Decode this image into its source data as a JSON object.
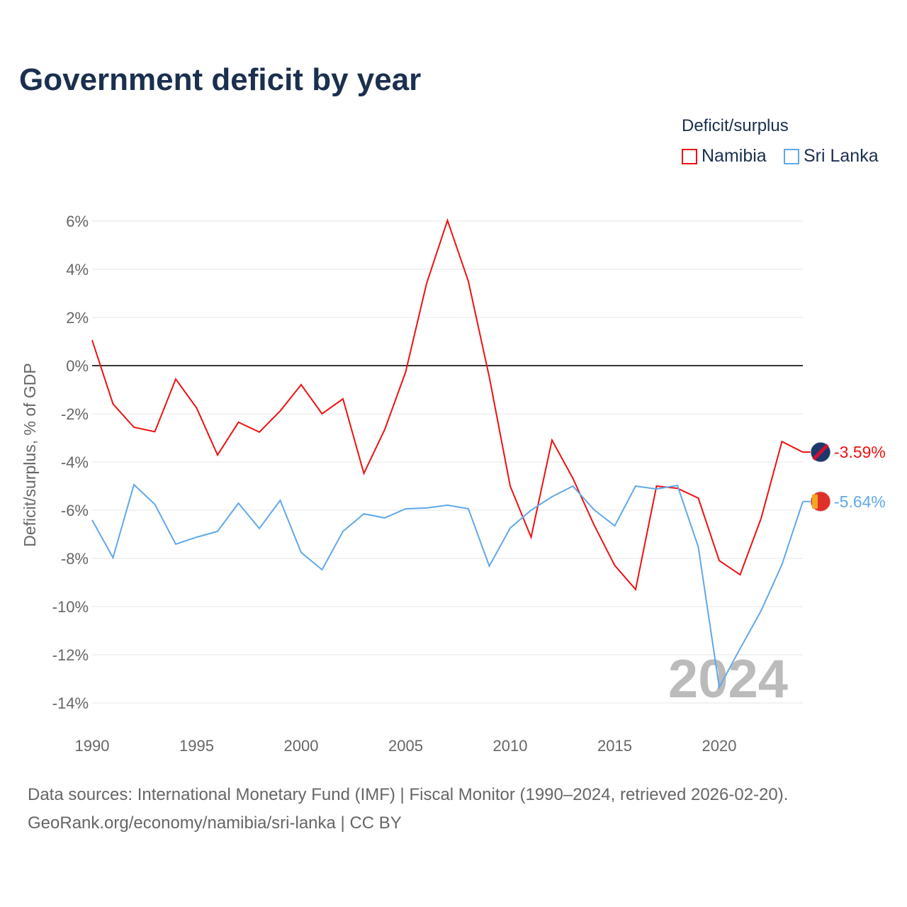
{
  "title": "Government deficit by year",
  "legend": {
    "title": "Deficit/surplus",
    "items": [
      {
        "name": "Namibia",
        "color": "#ee1111"
      },
      {
        "name": "Sri Lanka",
        "color": "#60a8ea"
      }
    ]
  },
  "footer": {
    "line1": "Data sources: International Monetary Fund (IMF) | Fiscal Monitor (1990–2024, retrieved 2026-02-20).",
    "line2": "GeoRank.org/economy/namibia/sri-lanka | CC BY"
  },
  "chart_data": {
    "type": "line",
    "title": "Government deficit by year",
    "xlabel": "",
    "ylabel": "Deficit/surplus, % of GDP",
    "xlim": [
      1990,
      2024
    ],
    "ylim": [
      -15,
      6.5
    ],
    "yticks": [
      6,
      4,
      2,
      0,
      -2,
      -4,
      -6,
      -8,
      -10,
      -12,
      -14
    ],
    "ytick_labels": [
      "6%",
      "4%",
      "2%",
      "0%",
      "-2%",
      "-4%",
      "-6%",
      "-8%",
      "-10%",
      "-12%",
      "-14%"
    ],
    "xticks": [
      1990,
      1995,
      2000,
      2005,
      2010,
      2015,
      2020
    ],
    "xtick_labels": [
      "1990",
      "1995",
      "2000",
      "2005",
      "2010",
      "2015",
      "2020"
    ],
    "year_watermark": "2024",
    "grid": true,
    "legend_position": "top-right",
    "x": [
      1990,
      1991,
      1992,
      1993,
      1994,
      1995,
      1996,
      1997,
      1998,
      1999,
      2000,
      2001,
      2002,
      2003,
      2004,
      2005,
      2006,
      2007,
      2008,
      2009,
      2010,
      2011,
      2012,
      2013,
      2014,
      2015,
      2016,
      2017,
      2018,
      2019,
      2020,
      2021,
      2022,
      2023,
      2024
    ],
    "series": [
      {
        "name": "Namibia",
        "color": "#ee1111",
        "end_label": "-3.59%",
        "values": [
          1.06,
          -1.59,
          -2.56,
          -2.74,
          -0.56,
          -1.76,
          -3.71,
          -2.35,
          -2.76,
          -1.88,
          -0.79,
          -2.0,
          -1.38,
          -4.47,
          -2.65,
          -0.26,
          3.41,
          6.03,
          3.5,
          -0.47,
          -5.0,
          -7.12,
          -3.09,
          -4.68,
          -6.59,
          -8.29,
          -9.29,
          -5.0,
          -5.09,
          -5.5,
          -8.09,
          -8.68,
          -6.35,
          -3.15,
          -3.59
        ]
      },
      {
        "name": "Sri Lanka",
        "color": "#60a8ea",
        "end_label": "-5.64%",
        "values": [
          -6.41,
          -7.97,
          -4.94,
          -5.76,
          -7.41,
          -7.12,
          -6.88,
          -5.71,
          -6.76,
          -5.59,
          -7.76,
          -8.47,
          -6.88,
          -6.15,
          -6.32,
          -5.94,
          -5.91,
          -5.79,
          -5.94,
          -8.32,
          -6.74,
          -6.0,
          -5.44,
          -5.0,
          -5.97,
          -6.65,
          -5.0,
          -5.12,
          -4.97,
          -7.53,
          -13.35,
          -11.74,
          -10.18,
          -8.26,
          -5.64
        ]
      }
    ]
  }
}
